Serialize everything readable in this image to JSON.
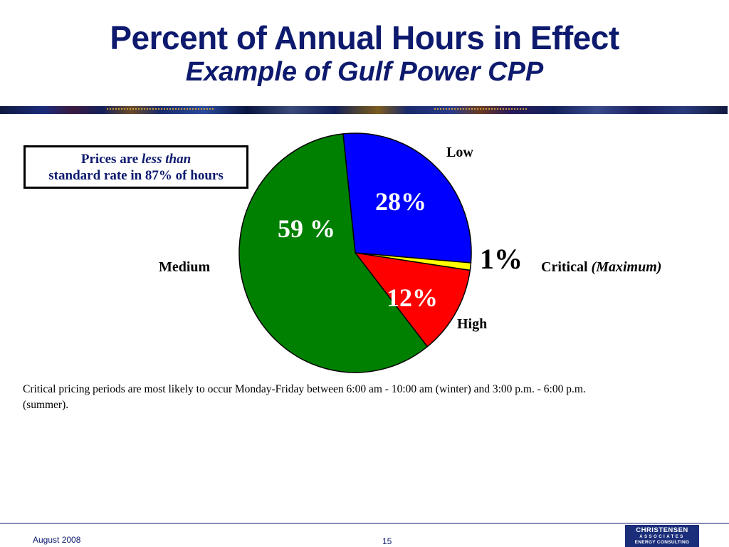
{
  "title": "Percent of Annual Hours in Effect",
  "subtitle": "Example of Gulf Power CPP",
  "callout": {
    "prefix": "Prices are",
    "emphasis": "less than",
    "line2": "standard rate in 87% of hours"
  },
  "chart_data": {
    "type": "pie",
    "title": "",
    "slices": [
      {
        "label": "Low",
        "value": 28,
        "display": "28%",
        "color": "#0000ff",
        "text_color": "#ffffff"
      },
      {
        "label": "Critical",
        "label_note": "(Maximum)",
        "value": 1,
        "display": "1%",
        "color": "#ffff00",
        "text_color": "#000000"
      },
      {
        "label": "High",
        "value": 12,
        "display": "12%",
        "color": "#ff0000",
        "text_color": "#ffffff"
      },
      {
        "label": "Medium",
        "value": 59,
        "display": "59 %",
        "color": "#008000",
        "text_color": "#ffffff"
      }
    ],
    "legend": false
  },
  "footnote": "Critical pricing periods are most likely to occur Monday-Friday between 6:00 am - 10:00 am (winter) and 3:00 p.m. - 6:00 p.m. (summer).",
  "footer": {
    "date": "August  2008",
    "page": "15",
    "logo_line1": "CHRISTENSEN",
    "logo_line2": "ASSOCIATES",
    "logo_line3": "ENERGY CONSULTING"
  }
}
